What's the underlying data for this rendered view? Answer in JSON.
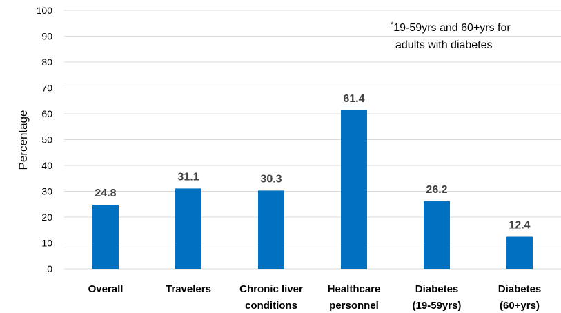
{
  "chart_data": {
    "type": "bar",
    "title": "",
    "xlabel": "",
    "ylabel": "Percentage",
    "ylim": [
      0,
      100
    ],
    "yticks": [
      0,
      10,
      20,
      30,
      40,
      50,
      60,
      70,
      80,
      90,
      100
    ],
    "grid": true,
    "categories": [
      [
        "Overall"
      ],
      [
        "Travelers"
      ],
      [
        "Chronic liver",
        "conditions"
      ],
      [
        "Healthcare",
        "personnel"
      ],
      [
        "Diabetes",
        "(19-59yrs)"
      ],
      [
        "Diabetes",
        "(60+yrs)"
      ]
    ],
    "values": [
      24.8,
      31.1,
      30.3,
      61.4,
      26.2,
      12.4
    ],
    "data_labels": [
      "24.8",
      "31.1",
      "30.3",
      "61.4",
      "26.2",
      "12.4"
    ],
    "bar_color": "#0070c0",
    "annotation": {
      "marker": "*",
      "lines": [
        "19-59yrs and 60+yrs for",
        "adults with diabetes"
      ]
    }
  }
}
